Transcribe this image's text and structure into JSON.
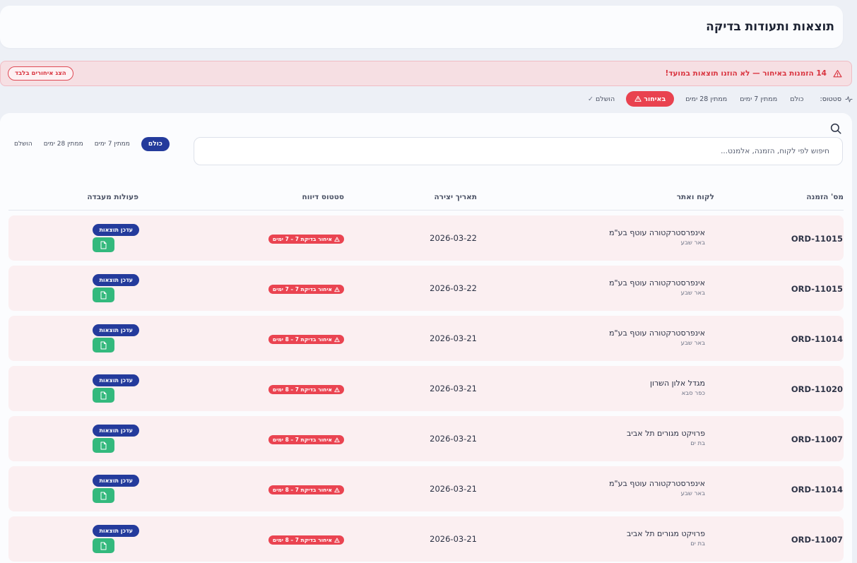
{
  "header": {
    "title": "תוצאות ותעודות בדיקה"
  },
  "alert": {
    "text": "14 הזמנות באיחור — לא הוזנו תוצאות במועד!",
    "button_label": "הצג איחורים בלבד",
    "color": "#e9424f"
  },
  "status_filter": {
    "label": "סטטוס:",
    "options": [
      {
        "label": "כולם",
        "active": false
      },
      {
        "label": "ממתין 7 ימים",
        "active": false
      },
      {
        "label": "ממתין 28 ימים",
        "active": false
      },
      {
        "label": "באיחור",
        "active": true
      },
      {
        "label": "הושלם",
        "active": false
      }
    ]
  },
  "search": {
    "placeholder": "חיפוש לפי לקוח, הזמנה, אלמנט...",
    "value": ""
  },
  "chips": [
    {
      "label": "כולם",
      "active": true
    },
    {
      "label": "ממתין 7 ימים",
      "active": false
    },
    {
      "label": "ממתין 28 ימים",
      "active": false
    },
    {
      "label": "הושלם",
      "active": false
    }
  ],
  "table": {
    "columns": {
      "order": "מס' הזמנה",
      "client": "לקוח ואתר",
      "date": "תאריך יצירה",
      "report": "סטטוס דיווח",
      "actions": "פעולות מעבדה"
    },
    "update_label": "עדכן תוצאות",
    "rows": [
      {
        "order": "ORD-11015",
        "client": "אינפרסטרקטורה עוטף בע\"מ",
        "city": "באר שבע",
        "date": "2026-03-22",
        "status": "איחור בדיקת 7 – 7 ימים"
      },
      {
        "order": "ORD-11015",
        "client": "אינפרסטרקטורה עוטף בע\"מ",
        "city": "באר שבע",
        "date": "2026-03-22",
        "status": "איחור בדיקת 7 – 7 ימים"
      },
      {
        "order": "ORD-11014",
        "client": "אינפרסטרקטורה עוטף בע\"מ",
        "city": "באר שבע",
        "date": "2026-03-21",
        "status": "איחור בדיקת 7 – 8 ימים"
      },
      {
        "order": "ORD-11020",
        "client": "מגדל אלון השרון",
        "city": "כפר סבא",
        "date": "2026-03-21",
        "status": "איחור בדיקת 7 – 8 ימים"
      },
      {
        "order": "ORD-11007",
        "client": "פרויקט מגורים תל אביב",
        "city": "בת ים",
        "date": "2026-03-21",
        "status": "איחור בדיקת 7 – 8 ימים"
      },
      {
        "order": "ORD-11014",
        "client": "אינפרסטרקטורה עוטף בע\"מ",
        "city": "באר שבע",
        "date": "2026-03-21",
        "status": "איחור בדיקת 7 – 8 ימים"
      },
      {
        "order": "ORD-11007",
        "client": "פרויקט מגורים תל אביב",
        "city": "בת ים",
        "date": "2026-03-21",
        "status": "איחור בדיקת 7 – 8 ימים"
      }
    ]
  },
  "colors": {
    "primary": "#243b9c",
    "danger": "#e9424f",
    "success": "#33b97d"
  },
  "icons": {
    "alert": "warning-triangle-icon",
    "status": "activity-pulse-icon",
    "search": "search-icon",
    "doc": "document-icon",
    "check": "check-icon"
  }
}
